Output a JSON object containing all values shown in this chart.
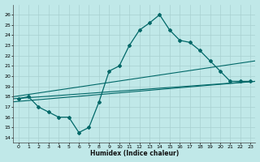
{
  "xlabel": "Humidex (Indice chaleur)",
  "bg_color": "#c0e8e8",
  "grid_color": "#a8d0d0",
  "line_color": "#006868",
  "x_data": [
    0,
    1,
    2,
    3,
    4,
    5,
    6,
    7,
    8,
    9,
    10,
    11,
    12,
    13,
    14,
    15,
    16,
    17,
    18,
    19,
    20,
    21,
    22,
    23
  ],
  "y_curve": [
    17.8,
    18.0,
    17.0,
    16.5,
    16.0,
    16.0,
    14.5,
    15.0,
    17.5,
    20.5,
    21.0,
    23.0,
    24.5,
    25.2,
    26.0,
    24.5,
    23.5,
    23.3,
    22.5,
    21.5,
    20.5,
    19.5,
    19.5,
    19.5
  ],
  "ylim": [
    13.5,
    27
  ],
  "xlim": [
    -0.5,
    23.5
  ],
  "yticks": [
    14,
    15,
    16,
    17,
    18,
    19,
    20,
    21,
    22,
    23,
    24,
    25,
    26
  ],
  "xticks": [
    0,
    1,
    2,
    3,
    4,
    5,
    6,
    7,
    8,
    9,
    10,
    11,
    12,
    13,
    14,
    15,
    16,
    17,
    18,
    19,
    20,
    21,
    22,
    23
  ],
  "reg_line1": [
    17.8,
    19.5
  ],
  "reg_line2": [
    18.0,
    21.5
  ],
  "reg_line3": [
    17.5,
    19.5
  ]
}
